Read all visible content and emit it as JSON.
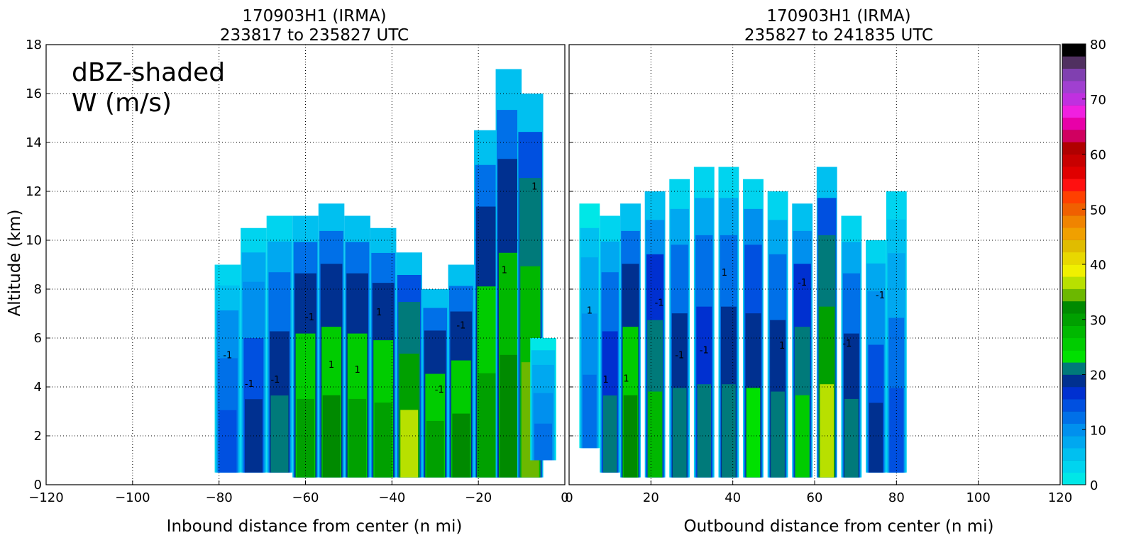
{
  "chart_data": [
    {
      "type": "heatmap",
      "title": [
        "170903H1 (IRMA)",
        "233817 to 235827 UTC"
      ],
      "xlabel": "Inbound distance from center (n mi)",
      "ylabel": "Altitude (km)",
      "xlim": [
        -120,
        0
      ],
      "ylim": [
        0,
        18
      ],
      "xticks": [
        -120,
        -100,
        -80,
        -60,
        -40,
        -20,
        0
      ],
      "yticks": [
        0,
        2,
        4,
        6,
        8,
        10,
        12,
        14,
        16,
        18
      ],
      "grid": true,
      "annotation": [
        "dBZ-shaded",
        "W (m/s)"
      ],
      "reflectivity_columns": [
        {
          "x": -78,
          "bottom": 0.5,
          "top": 9.0,
          "dbz": 15
        },
        {
          "x": -72,
          "bottom": 0.5,
          "top": 10.5,
          "dbz": 18
        },
        {
          "x": -66,
          "bottom": 0.5,
          "top": 11.0,
          "dbz": 22
        },
        {
          "x": -60,
          "bottom": 0.3,
          "top": 11.0,
          "dbz": 30
        },
        {
          "x": -54,
          "bottom": 0.3,
          "top": 11.5,
          "dbz": 32
        },
        {
          "x": -48,
          "bottom": 0.3,
          "top": 11.0,
          "dbz": 30
        },
        {
          "x": -42,
          "bottom": 0.3,
          "top": 10.5,
          "dbz": 31
        },
        {
          "x": -36,
          "bottom": 0.3,
          "top": 9.5,
          "dbz": 36
        },
        {
          "x": -30,
          "bottom": 0.3,
          "top": 8.0,
          "dbz": 30
        },
        {
          "x": -24,
          "bottom": 0.3,
          "top": 9.0,
          "dbz": 32
        },
        {
          "x": -18,
          "bottom": 0.3,
          "top": 14.5,
          "dbz": 30
        },
        {
          "x": -13,
          "bottom": 0.3,
          "top": 17.0,
          "dbz": 33
        },
        {
          "x": -8,
          "bottom": 0.3,
          "top": 16.0,
          "dbz": 34
        },
        {
          "x": -5,
          "bottom": 1.0,
          "top": 6.0,
          "dbz": 12
        }
      ],
      "w_contour_labels": [
        "-1",
        "1",
        "-1",
        "1",
        "-1",
        "-1",
        "1",
        "-1",
        "1",
        "-1",
        "1"
      ]
    },
    {
      "type": "heatmap",
      "title": [
        "170903H1 (IRMA)",
        "235827 to 241835 UTC"
      ],
      "xlabel": "Outbound distance from center (n mi)",
      "ylabel": "",
      "xlim": [
        0,
        120
      ],
      "ylim": [
        0,
        18
      ],
      "xticks": [
        0,
        20,
        40,
        60,
        80,
        100,
        120
      ],
      "grid": true,
      "reflectivity_columns": [
        {
          "x": 5,
          "bottom": 1.5,
          "top": 11.5,
          "dbz": 12
        },
        {
          "x": 10,
          "bottom": 0.5,
          "top": 11.0,
          "dbz": 20
        },
        {
          "x": 15,
          "bottom": 0.3,
          "top": 11.5,
          "dbz": 32
        },
        {
          "x": 21,
          "bottom": 0.3,
          "top": 12.0,
          "dbz": 27
        },
        {
          "x": 27,
          "bottom": 0.3,
          "top": 12.5,
          "dbz": 22
        },
        {
          "x": 33,
          "bottom": 0.3,
          "top": 13.0,
          "dbz": 20
        },
        {
          "x": 39,
          "bottom": 0.3,
          "top": 13.0,
          "dbz": 22
        },
        {
          "x": 45,
          "bottom": 0.3,
          "top": 12.5,
          "dbz": 24
        },
        {
          "x": 51,
          "bottom": 0.3,
          "top": 12.0,
          "dbz": 22
        },
        {
          "x": 57,
          "bottom": 0.3,
          "top": 11.5,
          "dbz": 26
        },
        {
          "x": 63,
          "bottom": 0.3,
          "top": 13.0,
          "dbz": 36
        },
        {
          "x": 69,
          "bottom": 0.3,
          "top": 11.0,
          "dbz": 22
        },
        {
          "x": 75,
          "bottom": 0.5,
          "top": 10.0,
          "dbz": 18
        },
        {
          "x": 80,
          "bottom": 0.5,
          "top": 12.0,
          "dbz": 14
        }
      ],
      "w_contour_labels": [
        "1",
        "-1",
        "1",
        "-1",
        "1",
        "-1",
        "1",
        "-1",
        "-1",
        "1",
        "-1"
      ]
    }
  ],
  "colorbar": {
    "min": 0,
    "max": 80,
    "ticks": [
      0,
      10,
      20,
      30,
      40,
      50,
      60,
      70,
      80
    ],
    "colors": [
      "#00e7e7",
      "#00d4ef",
      "#00c0f0",
      "#00a8f0",
      "#0090ee",
      "#0070e8",
      "#0050e0",
      "#0030d0",
      "#003090",
      "#007a7a",
      "#00e000",
      "#00cc00",
      "#00b800",
      "#00a000",
      "#008a00",
      "#6cb800",
      "#b8e000",
      "#f0f000",
      "#e8d800",
      "#e0bc00",
      "#f0a000",
      "#f08400",
      "#f06000",
      "#ff4000",
      "#ff1010",
      "#e00000",
      "#c80000",
      "#b00000",
      "#d00060",
      "#e800a8",
      "#f020e0",
      "#c030e0",
      "#a040d0",
      "#8040b0",
      "#503060",
      "#000000"
    ]
  }
}
